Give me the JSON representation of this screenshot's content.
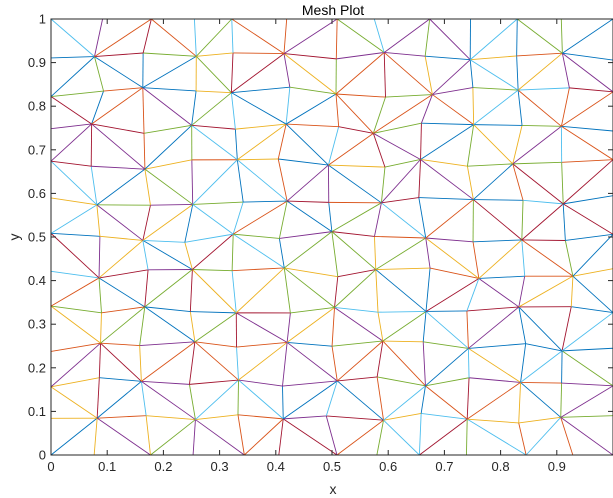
{
  "chart_data": {
    "type": "mesh",
    "title": "Mesh Plot",
    "xlabel": "x",
    "ylabel": "y",
    "xlim": [
      0,
      1
    ],
    "ylim": [
      0,
      1
    ],
    "x_ticks": [
      0,
      0.1,
      0.2,
      0.3,
      0.4,
      0.5,
      0.6,
      0.7,
      0.8,
      0.9
    ],
    "x_tick_labels": [
      "0",
      "0.1",
      "0.2",
      "0.3",
      "0.4",
      "0.5",
      "0.6",
      "0.7",
      "0.8",
      "0.9"
    ],
    "y_ticks": [
      0,
      0.1,
      0.2,
      0.3,
      0.4,
      0.5,
      0.6,
      0.7,
      0.8,
      0.9,
      1
    ],
    "y_tick_labels": [
      "0",
      "0.1",
      "0.2",
      "0.3",
      "0.4",
      "0.5",
      "0.6",
      "0.7",
      "0.8",
      "0.9",
      "1"
    ],
    "grid": false,
    "edge_colors": [
      "#0072BD",
      "#D95319",
      "#EDB120",
      "#7E2F8E",
      "#77AC30",
      "#4DBEEE",
      "#A2142F"
    ],
    "mesh_rows": 12,
    "mesh_cols": 12,
    "mesh_jitter": 0.3,
    "mesh_seed": 7
  }
}
